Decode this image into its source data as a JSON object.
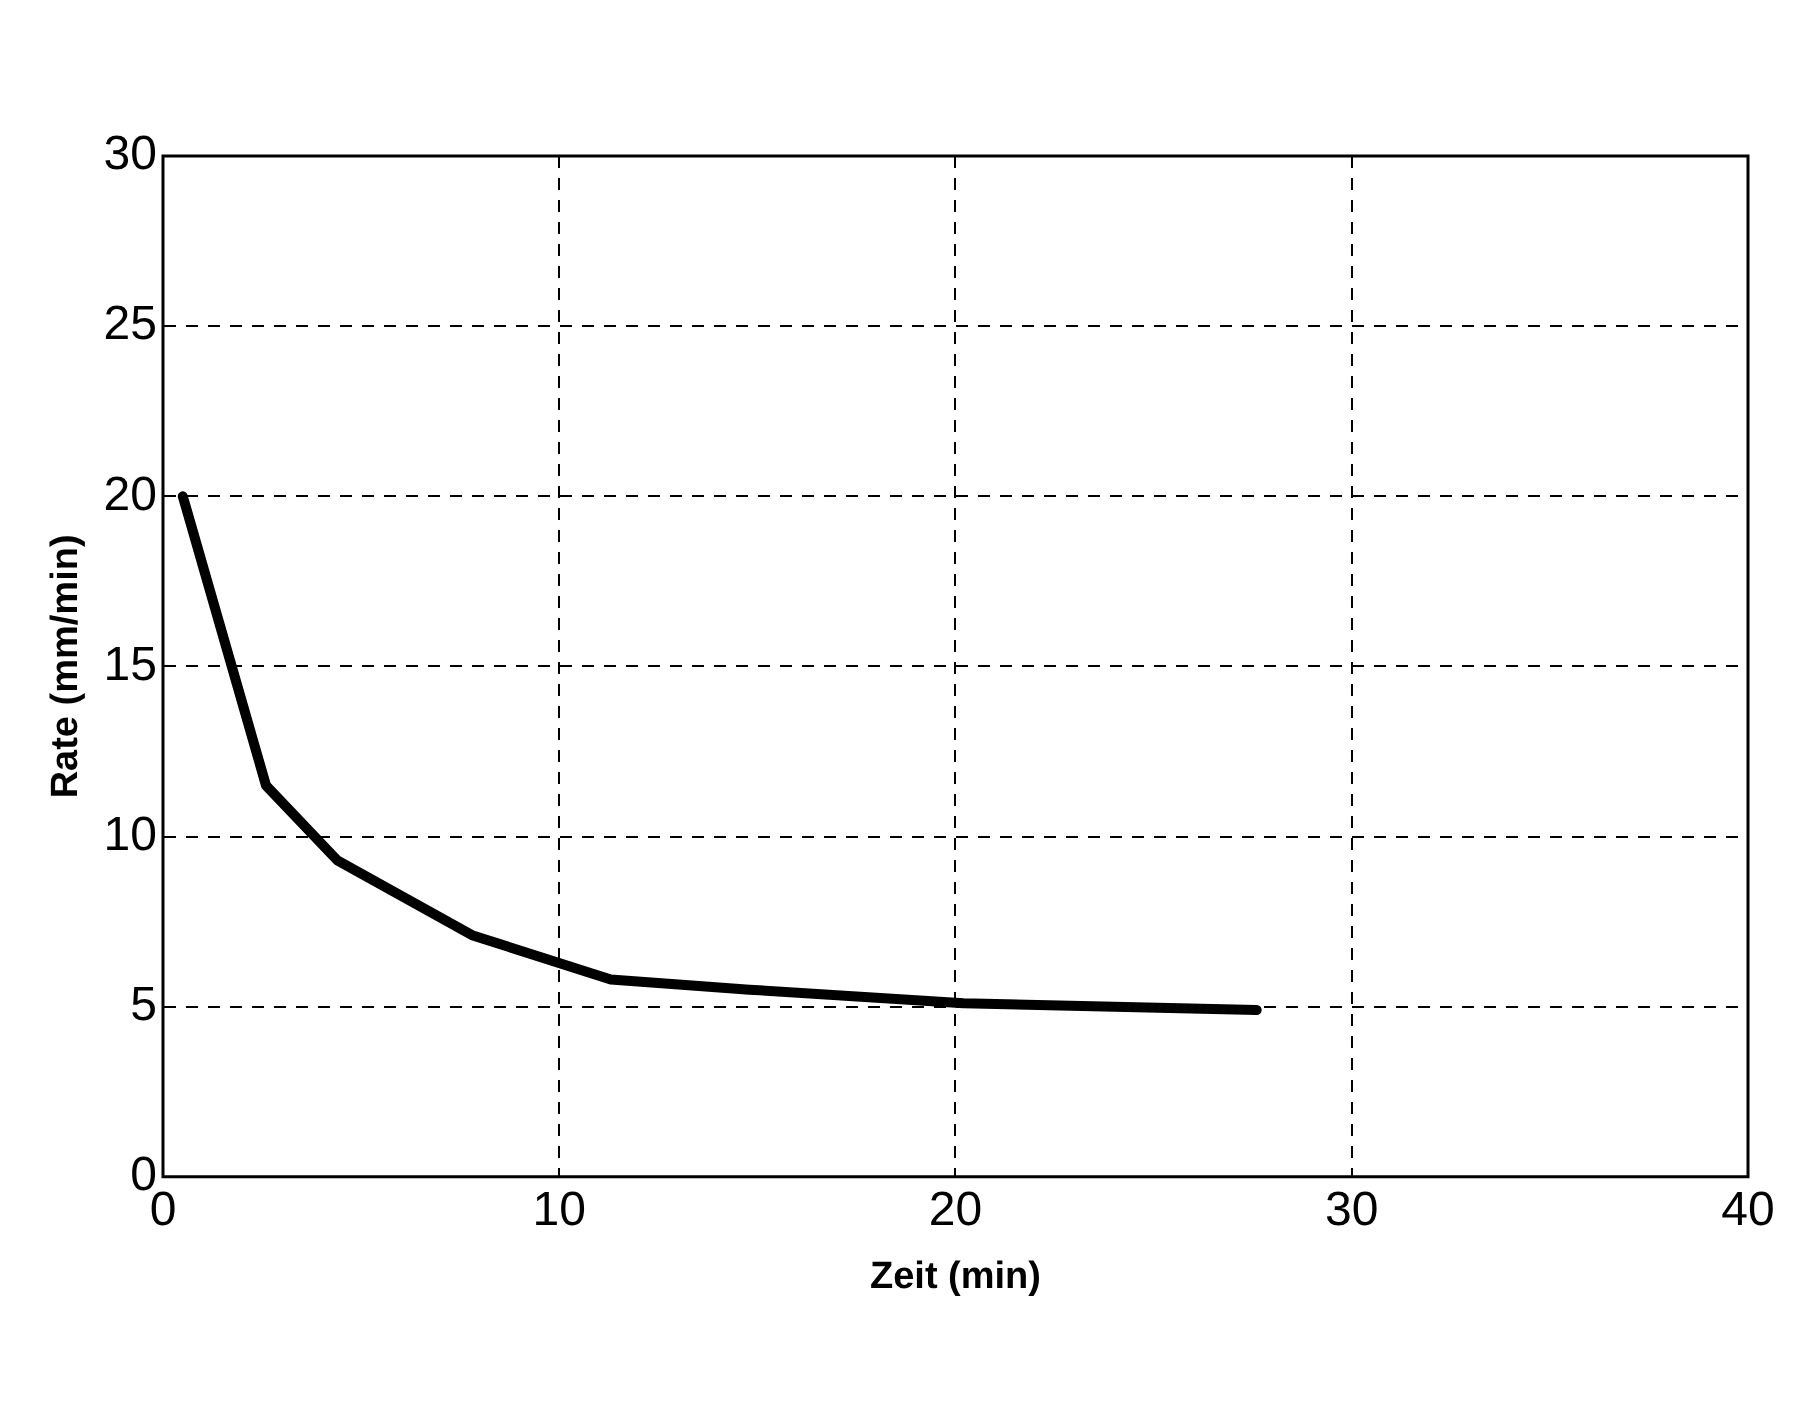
{
  "chart_data": {
    "type": "line",
    "xlabel": "Zeit (min)",
    "ylabel": "Rate (mm/min)",
    "series": [
      {
        "color": "#000000",
        "x": [
          0.5,
          2.6,
          4.4,
          7.8,
          11.3,
          14.8,
          20.2,
          27.6
        ],
        "values": [
          20,
          11.5,
          9.3,
          7.1,
          5.8,
          5.5,
          5.1,
          4.9
        ]
      }
    ],
    "xlim": [
      0,
      40
    ],
    "xticks": [
      0,
      10,
      20,
      30,
      40
    ],
    "ylim": [
      0,
      30
    ],
    "yticks": [
      0,
      5,
      10,
      15,
      20,
      25,
      30
    ],
    "grid": true,
    "legend": false,
    "marker": "none",
    "line_style": "solid"
  }
}
